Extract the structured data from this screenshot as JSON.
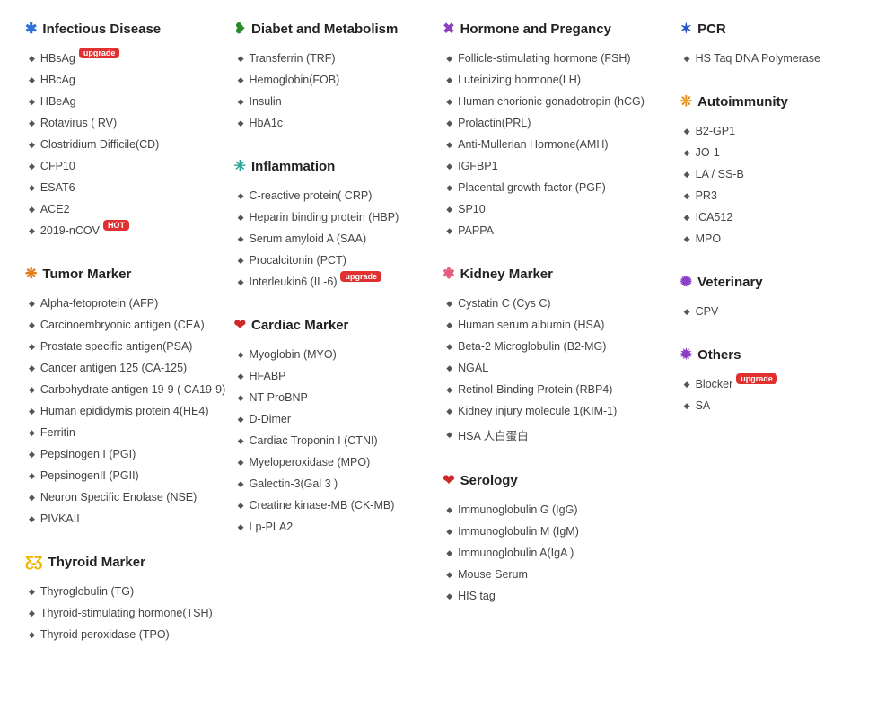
{
  "layout": {
    "columns": [
      [
        "infectious",
        "tumor",
        "thyroid"
      ],
      [
        "diabet",
        "inflammation",
        "cardiac"
      ],
      [
        "hormone",
        "kidney",
        "serology"
      ],
      [
        "pcr",
        "autoimmunity",
        "veterinary",
        "others"
      ]
    ]
  },
  "icons": {
    "blob-blue": {
      "glyph": "✱",
      "class": "ic-blue"
    },
    "blob-orange": {
      "glyph": "❋",
      "class": "ic-orange"
    },
    "butterfly": {
      "glyph": "Ƹ̵Ʒ",
      "class": "ic-yellow"
    },
    "stomach": {
      "glyph": "❥",
      "class": "ic-green"
    },
    "virus-teal": {
      "glyph": "✳",
      "class": "ic-teal"
    },
    "heart": {
      "glyph": "❤",
      "class": "ic-red"
    },
    "chromosome": {
      "glyph": "✖",
      "class": "ic-purple"
    },
    "kidneys": {
      "glyph": "❃",
      "class": "ic-pink"
    },
    "drop": {
      "glyph": "❤",
      "class": "ic-red"
    },
    "dna": {
      "glyph": "✶",
      "class": "ic-dblue"
    },
    "auto": {
      "glyph": "❊",
      "class": "ic-oorange"
    },
    "vet": {
      "glyph": "✺",
      "class": "ic-purple"
    },
    "other": {
      "glyph": "✹",
      "class": "ic-purple"
    }
  },
  "sections": {
    "infectious": {
      "title": "Infectious Disease",
      "icon": "blob-blue",
      "items": [
        {
          "label": "HBsAg",
          "badge": "upgrade"
        },
        {
          "label": "HBcAg"
        },
        {
          "label": "HBeAg"
        },
        {
          "label": "Rotavirus ( RV)"
        },
        {
          "label": "Clostridium Difficile(CD)"
        },
        {
          "label": "CFP10"
        },
        {
          "label": "ESAT6"
        },
        {
          "label": "ACE2"
        },
        {
          "label": "2019-nCOV",
          "badge": "HOT"
        }
      ]
    },
    "tumor": {
      "title": "Tumor Marker",
      "icon": "blob-orange",
      "items": [
        {
          "label": "Alpha-fetoprotein (AFP)"
        },
        {
          "label": "Carcinoembryonic antigen (CEA)"
        },
        {
          "label": "Prostate specific antigen(PSA)"
        },
        {
          "label": "Cancer antigen 125 (CA-125)"
        },
        {
          "label": "Carbohydrate antigen 19-9 ( CA19-9)"
        },
        {
          "label": "Human epididymis protein 4(HE4)"
        },
        {
          "label": "Ferritin"
        },
        {
          "label": "Pepsinogen I (PGI)"
        },
        {
          "label": "PepsinogenII (PGII)"
        },
        {
          "label": "Neuron Specific Enolase (NSE)"
        },
        {
          "label": "PIVKAII"
        }
      ]
    },
    "thyroid": {
      "title": "Thyroid Marker",
      "icon": "butterfly",
      "items": [
        {
          "label": "Thyroglobulin (TG)"
        },
        {
          "label": "Thyroid-stimulating hormone(TSH)"
        },
        {
          "label": "Thyroid peroxidase (TPO)"
        }
      ]
    },
    "diabet": {
      "title": "Diabet and Metabolism",
      "icon": "stomach",
      "items": [
        {
          "label": "Transferrin (TRF)"
        },
        {
          "label": "Hemoglobin(FOB)"
        },
        {
          "label": "Insulin"
        },
        {
          "label": "HbA1c"
        }
      ]
    },
    "inflammation": {
      "title": "Inflammation",
      "icon": "virus-teal",
      "items": [
        {
          "label": "C-reactive protein( CRP)"
        },
        {
          "label": "Heparin binding protein (HBP)"
        },
        {
          "label": "Serum amyloid A (SAA)"
        },
        {
          "label": "Procalcitonin (PCT)"
        },
        {
          "label": "Interleukin6 (IL-6)",
          "badge": "upgrade"
        }
      ]
    },
    "cardiac": {
      "title": "Cardiac Marker",
      "icon": "heart",
      "items": [
        {
          "label": "Myoglobin (MYO)"
        },
        {
          "label": "HFABP"
        },
        {
          "label": "NT-ProBNP"
        },
        {
          "label": "D-Dimer"
        },
        {
          "label": "Cardiac Troponin I (CTNI)"
        },
        {
          "label": "Myeloperoxidase (MPO)"
        },
        {
          "label": "Galectin-3(Gal 3 )"
        },
        {
          "label": "Creatine kinase-MB (CK-MB)"
        },
        {
          "label": "Lp-PLA2"
        }
      ]
    },
    "hormone": {
      "title": "Hormone and Pregancy",
      "icon": "chromosome",
      "items": [
        {
          "label": "Follicle-stimulating hormone (FSH)"
        },
        {
          "label": "Luteinizing hormone(LH)"
        },
        {
          "label": "Human chorionic gonadotropin (hCG)"
        },
        {
          "label": "Prolactin(PRL)"
        },
        {
          "label": "Anti-Mullerian Hormone(AMH)"
        },
        {
          "label": "IGFBP1"
        },
        {
          "label": "Placental growth factor (PGF)"
        },
        {
          "label": "SP10"
        },
        {
          "label": "PAPPA"
        }
      ]
    },
    "kidney": {
      "title": "Kidney Marker",
      "icon": "kidneys",
      "items": [
        {
          "label": "Cystatin C (Cys C)"
        },
        {
          "label": "Human serum albumin (HSA)"
        },
        {
          "label": "Beta-2 Microglobulin (B2-MG)"
        },
        {
          "label": "NGAL"
        },
        {
          "label": "Retinol-Binding Protein (RBP4)"
        },
        {
          "label": "Kidney injury molecule 1(KIM-1)"
        },
        {
          "label": "HSA 人白蛋白"
        }
      ]
    },
    "serology": {
      "title": "Serology",
      "icon": "drop",
      "items": [
        {
          "label": "Immunoglobulin G (IgG)"
        },
        {
          "label": "Immunoglobulin M (IgM)"
        },
        {
          "label": "Immunoglobulin A(IgA )"
        },
        {
          "label": "Mouse Serum"
        },
        {
          "label": "HIS tag"
        }
      ]
    },
    "pcr": {
      "title": "PCR",
      "icon": "dna",
      "items": [
        {
          "label": "HS Taq DNA Polymerase"
        }
      ]
    },
    "autoimmunity": {
      "title": "Autoimmunity",
      "icon": "auto",
      "items": [
        {
          "label": "B2-GP1"
        },
        {
          "label": "JO-1"
        },
        {
          "label": "LA / SS-B"
        },
        {
          "label": "PR3"
        },
        {
          "label": "ICA512"
        },
        {
          "label": "MPO"
        }
      ]
    },
    "veterinary": {
      "title": "Veterinary",
      "icon": "vet",
      "items": [
        {
          "label": "CPV"
        }
      ]
    },
    "others": {
      "title": "Others",
      "icon": "other",
      "items": [
        {
          "label": "Blocker",
          "badge": "upgrade"
        },
        {
          "label": "SA"
        }
      ]
    }
  },
  "style": {
    "badge_bg": "#e03030",
    "badge_fg": "#ffffff"
  }
}
